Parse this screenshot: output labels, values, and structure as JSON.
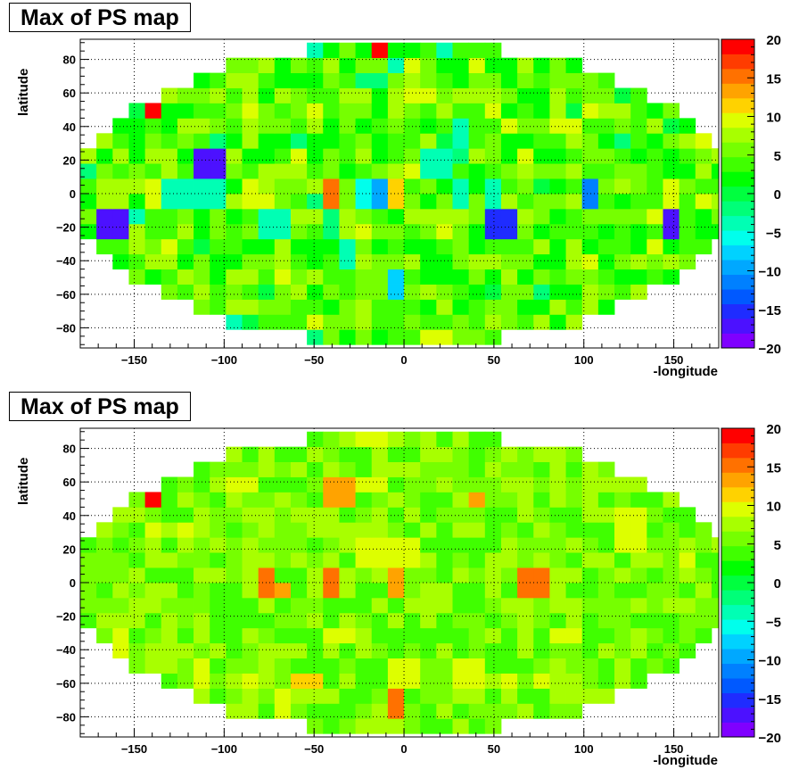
{
  "chart_data": [
    {
      "type": "heatmap",
      "title": "Max of PS map",
      "xlabel": "-longitude",
      "ylabel": "latitude",
      "xlim": [
        -180,
        175
      ],
      "ylim": [
        -92,
        92
      ],
      "xticks": [
        -150,
        -100,
        -50,
        0,
        50,
        100,
        150
      ],
      "yticks": [
        -80,
        -60,
        -40,
        -20,
        0,
        20,
        40,
        60,
        80
      ],
      "zlim": [
        -20,
        20
      ],
      "zticks": [
        20,
        15,
        10,
        5,
        0,
        -5,
        -10,
        -15,
        -20
      ],
      "palette": [
        "#7f00ff",
        "#4c11ff",
        "#1f2cff",
        "#0059ff",
        "#0080ff",
        "#00a8ff",
        "#00d2ff",
        "#00ffec",
        "#00ffb4",
        "#00ff78",
        "#00ff3f",
        "#00ff00",
        "#40ff00",
        "#76ff00",
        "#a8ff00",
        "#ddff00",
        "#ffd200",
        "#ffa300",
        "#ff7100",
        "#ff3c00",
        "#ff0000"
      ],
      "grid": true,
      "colorbar": "right",
      "hot_cells": [
        [
          -16,
          88,
          20
        ],
        [
          -136,
          46,
          20
        ],
        [
          -44,
          0,
          16
        ],
        [
          -10,
          0,
          -10
        ],
        [
          -2,
          0,
          11
        ],
        [
          -108,
          18,
          -17
        ],
        [
          -100,
          18,
          -17
        ],
        [
          100,
          0,
          -12
        ],
        [
          54,
          -18,
          -15
        ],
        [
          -162,
          -18,
          -17
        ],
        [
          -154,
          -18,
          -16
        ],
        [
          152,
          -18,
          -17
        ],
        [
          -4,
          -54,
          -8
        ],
        [
          -108,
          0,
          -4
        ],
        [
          -100,
          0,
          -3
        ],
        [
          -74,
          -8,
          10
        ],
        [
          -128,
          -28,
          10
        ],
        [
          -88,
          0,
          10
        ],
        [
          -126,
          0,
          -4
        ],
        [
          -72,
          -18,
          -4
        ],
        [
          18,
          18,
          -4
        ],
        [
          28,
          36,
          -3
        ],
        [
          -8,
          80,
          -3
        ],
        [
          -18,
          70,
          -2
        ],
        [
          -34,
          -36,
          -3
        ],
        [
          -136,
          0,
          10
        ],
        [
          90,
          44,
          10
        ],
        [
          152,
          0,
          10
        ],
        [
          -44,
          -18,
          -2
        ],
        [
          34,
          0,
          -4
        ],
        [
          46,
          0,
          -4
        ],
        [
          62,
          -18,
          -3
        ],
        [
          -26,
          0,
          -6
        ]
      ]
    },
    {
      "type": "heatmap",
      "title": "Max of PS map",
      "xlabel": "-longitude",
      "ylabel": "latitude",
      "xlim": [
        -180,
        175
      ],
      "ylim": [
        -92,
        92
      ],
      "xticks": [
        -150,
        -100,
        -50,
        0,
        50,
        100,
        150
      ],
      "yticks": [
        -80,
        -60,
        -40,
        -20,
        0,
        20,
        40,
        60,
        80
      ],
      "zlim": [
        -20,
        20
      ],
      "zticks": [
        20,
        15,
        10,
        5,
        0,
        -5,
        -10,
        -15,
        -20
      ],
      "palette": [
        "#7f00ff",
        "#4c11ff",
        "#1f2cff",
        "#0059ff",
        "#0080ff",
        "#00a8ff",
        "#00d2ff",
        "#00ffec",
        "#00ffb4",
        "#00ff78",
        "#00ff3f",
        "#00ff00",
        "#40ff00",
        "#76ff00",
        "#a8ff00",
        "#ddff00",
        "#ffd200",
        "#ffa300",
        "#ff7100",
        "#ff3c00",
        "#ff0000"
      ],
      "grid": true,
      "colorbar": "right",
      "hot_cells": [
        [
          -136,
          46,
          20
        ],
        [
          -80,
          0,
          15
        ],
        [
          -72,
          -8,
          14
        ],
        [
          -44,
          0,
          15
        ],
        [
          -8,
          0,
          13
        ],
        [
          72,
          0,
          15
        ],
        [
          -8,
          -72,
          15
        ],
        [
          -36,
          62,
          13
        ],
        [
          -36,
          46,
          13
        ],
        [
          44,
          46,
          13
        ],
        [
          -18,
          88,
          10
        ],
        [
          -136,
          28,
          10
        ],
        [
          -120,
          28,
          10
        ],
        [
          -154,
          -36,
          10
        ],
        [
          -110,
          -54,
          10
        ],
        [
          -18,
          18,
          10
        ],
        [
          -36,
          -28,
          10
        ],
        [
          0,
          -54,
          10
        ],
        [
          8,
          -54,
          10
        ],
        [
          158,
          10,
          10
        ],
        [
          -54,
          -62,
          11
        ],
        [
          -62,
          -62,
          10
        ],
        [
          -82,
          -62,
          10
        ],
        [
          -64,
          -72,
          10
        ],
        [
          -18,
          62,
          10
        ],
        [
          -10,
          62,
          10
        ],
        [
          36,
          -54,
          10
        ],
        [
          62,
          -62,
          10
        ],
        [
          80,
          -62,
          10
        ],
        [
          126,
          20,
          10
        ],
        [
          -90,
          62,
          9
        ],
        [
          0,
          18,
          9
        ],
        [
          90,
          -28,
          10
        ],
        [
          126,
          36,
          9
        ]
      ]
    }
  ]
}
